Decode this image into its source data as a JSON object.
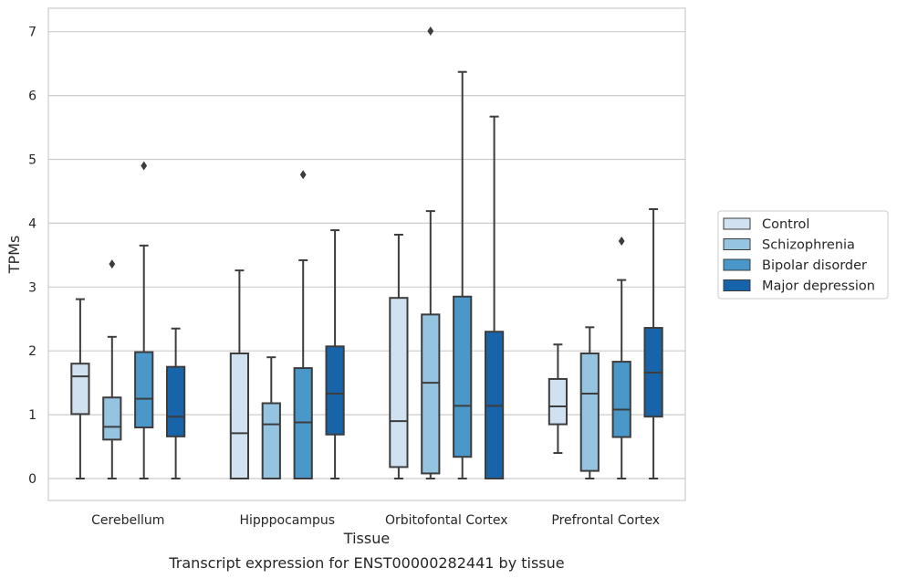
{
  "chart_data": {
    "type": "box",
    "title": "",
    "caption": "Transcript expression for ENST00000282441 by tissue",
    "xlabel": "Tissue",
    "ylabel": "TPMs",
    "ylim": [
      -0.33,
      7.38
    ],
    "yticks": [
      0,
      1,
      2,
      3,
      4,
      5,
      6,
      7
    ],
    "grid": "horizontal",
    "legend_position": "right",
    "categories": [
      "Cerebellum",
      "Hipppocampus",
      "Orbitofontal Cortex",
      "Prefrontal Cortex"
    ],
    "series": [
      {
        "name": "Control",
        "color": "#d0e1f2",
        "boxes": [
          {
            "whislo": 0,
            "q1": 1.01,
            "med": 1.6,
            "q3": 1.8,
            "whishi": 2.81,
            "fliers": []
          },
          {
            "whislo": 0,
            "q1": 0,
            "med": 0.71,
            "q3": 1.96,
            "whishi": 3.26,
            "fliers": []
          },
          {
            "whislo": 0,
            "q1": 0.18,
            "med": 0.9,
            "q3": 2.83,
            "whishi": 3.82,
            "fliers": []
          },
          {
            "whislo": 0.4,
            "q1": 0.85,
            "med": 1.13,
            "q3": 1.56,
            "whishi": 2.1,
            "fliers": []
          }
        ]
      },
      {
        "name": "Schizophrenia",
        "color": "#94c4df",
        "boxes": [
          {
            "whislo": 0,
            "q1": 0.61,
            "med": 0.81,
            "q3": 1.27,
            "whishi": 2.22,
            "fliers": [
              3.36
            ]
          },
          {
            "whislo": 0,
            "q1": 0,
            "med": 0.85,
            "q3": 1.18,
            "whishi": 1.9,
            "fliers": []
          },
          {
            "whislo": 0,
            "q1": 0.08,
            "med": 1.5,
            "q3": 2.57,
            "whishi": 4.19,
            "fliers": [
              7.01
            ]
          },
          {
            "whislo": 0,
            "q1": 0.12,
            "med": 1.33,
            "q3": 1.96,
            "whishi": 2.37,
            "fliers": []
          }
        ]
      },
      {
        "name": "Bipolar disorder",
        "color": "#4a98c9",
        "boxes": [
          {
            "whislo": 0,
            "q1": 0.8,
            "med": 1.25,
            "q3": 1.98,
            "whishi": 3.65,
            "fliers": [
              4.9
            ]
          },
          {
            "whislo": 0,
            "q1": 0,
            "med": 0.88,
            "q3": 1.73,
            "whishi": 3.42,
            "fliers": [
              4.76
            ]
          },
          {
            "whislo": 0,
            "q1": 0.34,
            "med": 1.14,
            "q3": 2.85,
            "whishi": 6.37,
            "fliers": []
          },
          {
            "whislo": 0,
            "q1": 0.65,
            "med": 1.08,
            "q3": 1.83,
            "whishi": 3.11,
            "fliers": [
              3.72
            ]
          }
        ]
      },
      {
        "name": "Major depression",
        "color": "#1764ab",
        "boxes": [
          {
            "whislo": 0,
            "q1": 0.66,
            "med": 0.97,
            "q3": 1.75,
            "whishi": 2.35,
            "fliers": []
          },
          {
            "whislo": 0,
            "q1": 0.69,
            "med": 1.33,
            "q3": 2.07,
            "whishi": 3.89,
            "fliers": []
          },
          {
            "whislo": 0,
            "q1": 0,
            "med": 1.14,
            "q3": 2.3,
            "whishi": 5.67,
            "fliers": []
          },
          {
            "whislo": 0,
            "q1": 0.97,
            "med": 1.66,
            "q3": 2.36,
            "whishi": 4.22,
            "fliers": []
          }
        ]
      }
    ]
  }
}
